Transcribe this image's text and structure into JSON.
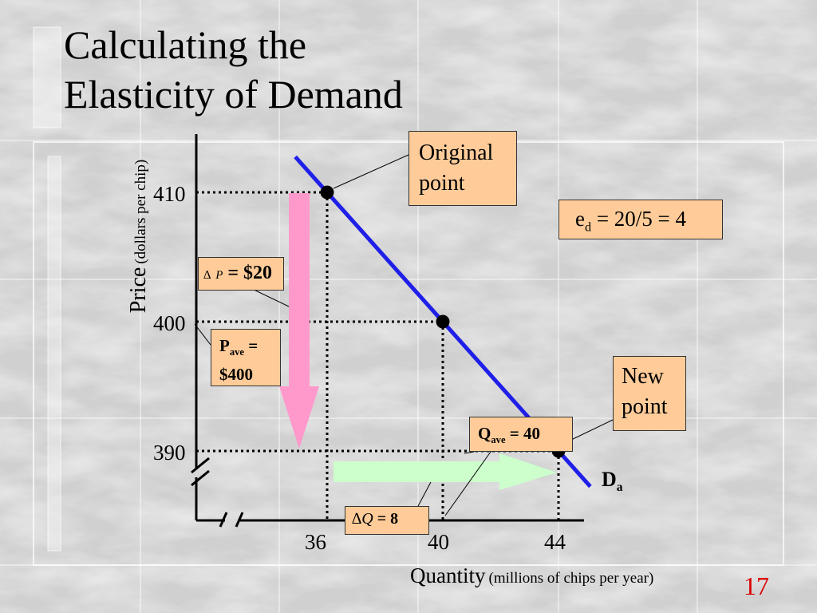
{
  "slide": {
    "title_line1": "Calculating the",
    "title_line2": "Elasticity of Demand",
    "page_number": "17",
    "colors": {
      "demand": "#1f1fe8",
      "price_arrow": "#ff99cc",
      "quantity_arrow": "#ccffcc",
      "callout": "#ffcc99",
      "page_number": "#d90000"
    }
  },
  "chart_data": {
    "type": "line",
    "xlabel_main": "Quantity",
    "xlabel_units": "(millions of chips per year)",
    "ylabel_main": "Price",
    "ylabel_units": "(dollars per chip)",
    "x_ticks": [
      "36",
      "40",
      "44"
    ],
    "y_ticks": [
      "410",
      "400",
      "390"
    ],
    "series": [
      {
        "name": "Da",
        "label_main": "D",
        "label_sub": "a",
        "points": [
          [
            36,
            410
          ],
          [
            40,
            400
          ],
          [
            44,
            390
          ]
        ]
      }
    ],
    "annotations": {
      "original_point": "Original point",
      "new_point": "New point",
      "elasticity_main": "e",
      "elasticity_sub": "d",
      "elasticity_rest": " = 20/5 = 4",
      "delta_p_symbol": "∆",
      "delta_p_var": "P",
      "delta_p_value": "= $20",
      "p_ave_main": "P",
      "p_ave_sub": "ave",
      "p_ave_eq": " =",
      "p_ave_value": "$400",
      "q_ave_main": "Q",
      "q_ave_sub": "ave",
      "q_ave_value": " = 40",
      "delta_q_symbol": "∆",
      "delta_q_var": "Q",
      "delta_q_value": " =  8"
    }
  }
}
